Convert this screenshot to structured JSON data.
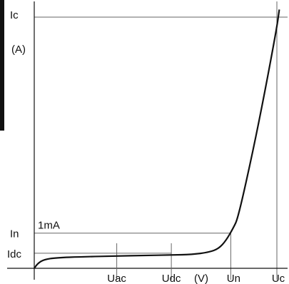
{
  "chart_data": {
    "type": "line",
    "title": "",
    "xlabel": "(V)",
    "ylabel": "(A)",
    "x_ticks": [
      {
        "id": "uac",
        "label": "Uac",
        "x": 0.34
      },
      {
        "id": "udc",
        "label": "Udc",
        "x": 0.565
      },
      {
        "id": "un",
        "label": "Un",
        "x": 0.81
      },
      {
        "id": "uc",
        "label": "Uc",
        "x": 1.0
      }
    ],
    "y_ticks": [
      {
        "id": "idc",
        "label": "Idc",
        "y": 0.06
      },
      {
        "id": "in",
        "label": "In",
        "y": 0.14
      },
      {
        "id": "ic",
        "label": "Ic",
        "y": 1.0
      }
    ],
    "xlim": [
      0,
      1.04
    ],
    "ylim": [
      0,
      1.05
    ],
    "annotations": [
      {
        "id": "one-milliamp",
        "text": "1mA",
        "anchor": "in"
      }
    ],
    "series": [
      {
        "x": [
          0.0,
          0.015,
          0.04,
          0.09,
          0.2,
          0.34,
          0.45,
          0.565,
          0.65,
          0.72,
          0.76,
          0.79,
          0.82,
          0.84,
          0.9,
          0.95,
          1.0,
          1.01
        ],
        "y": [
          0.0,
          0.02,
          0.035,
          0.042,
          0.046,
          0.049,
          0.051,
          0.053,
          0.055,
          0.064,
          0.078,
          0.11,
          0.16,
          0.2,
          0.46,
          0.7,
          0.96,
          1.03
        ]
      }
    ],
    "grid": false,
    "legend": "none"
  },
  "colors": {
    "line": "#111111",
    "guide": "#666666",
    "axis": "#111111"
  }
}
